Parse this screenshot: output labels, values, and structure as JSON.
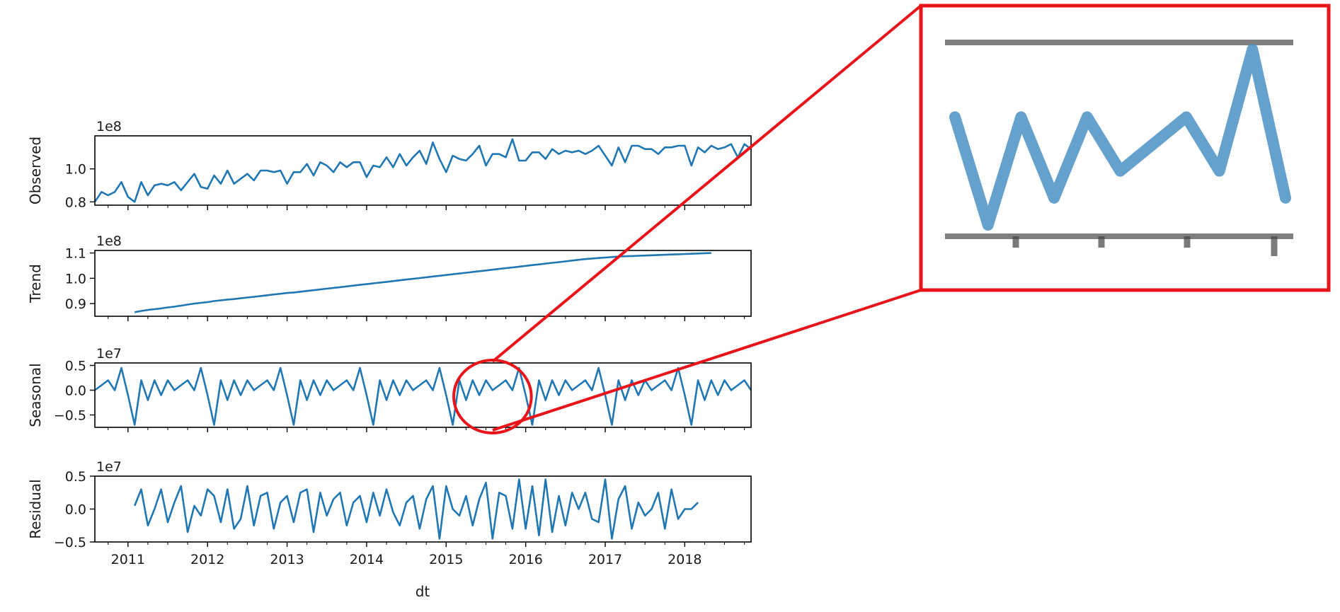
{
  "chart_data": {
    "type": "line",
    "title": "",
    "xlabel": "dt",
    "x_start": "2010-08",
    "x_end": "2018-11",
    "x_ticks": [
      "2011",
      "2012",
      "2013",
      "2014",
      "2015",
      "2016",
      "2017",
      "2018"
    ],
    "panels": [
      {
        "name": "Observed",
        "ylabel": "Observed",
        "offset_label": "1e8",
        "ylim": [
          0.78,
          1.2
        ],
        "y_ticks": [
          0.8,
          1.0
        ],
        "y_tick_labels": [
          "0.8",
          "1.0"
        ],
        "start": "2010-08",
        "values": [
          0.8,
          0.86,
          0.84,
          0.86,
          0.92,
          0.83,
          0.8,
          0.92,
          0.84,
          0.9,
          0.91,
          0.9,
          0.92,
          0.87,
          0.92,
          0.97,
          0.89,
          0.88,
          0.96,
          0.91,
          0.99,
          0.91,
          0.94,
          0.97,
          0.93,
          0.99,
          0.99,
          0.98,
          0.99,
          0.91,
          0.98,
          0.98,
          1.03,
          0.96,
          1.04,
          1.02,
          0.98,
          1.04,
          1.01,
          1.04,
          1.04,
          0.95,
          1.02,
          1.01,
          1.07,
          1.01,
          1.09,
          1.02,
          1.07,
          1.11,
          1.03,
          1.16,
          1.06,
          0.98,
          1.08,
          1.06,
          1.05,
          1.09,
          1.14,
          1.02,
          1.09,
          1.09,
          1.07,
          1.18,
          1.05,
          1.05,
          1.1,
          1.1,
          1.06,
          1.12,
          1.09,
          1.11,
          1.1,
          1.11,
          1.09,
          1.11,
          1.14,
          1.08,
          1.02,
          1.13,
          1.04,
          1.14,
          1.14,
          1.12,
          1.12,
          1.09,
          1.13,
          1.13,
          1.14,
          1.14,
          1.02,
          1.13,
          1.1,
          1.14,
          1.12,
          1.13,
          1.15,
          1.07,
          1.15,
          1.12
        ]
      },
      {
        "name": "Trend",
        "ylabel": "Trend",
        "offset_label": "1e8",
        "ylim": [
          0.85,
          1.11
        ],
        "y_ticks": [
          0.9,
          1.0,
          1.1
        ],
        "y_tick_labels": [
          "0.9",
          "1.0",
          "1.1"
        ],
        "start": "2011-02",
        "values": [
          0.866,
          0.871,
          0.875,
          0.878,
          0.881,
          0.885,
          0.888,
          0.892,
          0.896,
          0.9,
          0.903,
          0.906,
          0.91,
          0.913,
          0.916,
          0.918,
          0.921,
          0.924,
          0.927,
          0.93,
          0.933,
          0.936,
          0.939,
          0.942,
          0.944,
          0.947,
          0.95,
          0.953,
          0.956,
          0.959,
          0.962,
          0.965,
          0.968,
          0.971,
          0.974,
          0.977,
          0.98,
          0.983,
          0.986,
          0.989,
          0.992,
          0.995,
          0.998,
          1.001,
          1.004,
          1.007,
          1.01,
          1.013,
          1.016,
          1.019,
          1.022,
          1.025,
          1.028,
          1.031,
          1.034,
          1.037,
          1.04,
          1.043,
          1.046,
          1.049,
          1.052,
          1.055,
          1.058,
          1.061,
          1.064,
          1.067,
          1.07,
          1.073,
          1.076,
          1.078,
          1.08,
          1.082,
          1.084,
          1.086,
          1.087,
          1.088,
          1.089,
          1.09,
          1.091,
          1.092,
          1.093,
          1.094,
          1.095,
          1.096,
          1.097,
          1.098,
          1.099,
          1.1
        ]
      },
      {
        "name": "Seasonal",
        "ylabel": "Seasonal",
        "offset_label": "1e7",
        "ylim": [
          -0.75,
          0.55
        ],
        "y_ticks": [
          -0.5,
          0.0,
          0.5
        ],
        "y_tick_labels": [
          "−0.5",
          "0.0",
          "0.5"
        ],
        "start": "2010-08",
        "pattern_start_month": 8,
        "pattern": [
          0.0,
          0.1,
          0.2,
          0.0,
          0.45,
          -0.1,
          -0.7,
          0.2,
          -0.2,
          0.2,
          -0.1,
          0.2
        ],
        "n_points": 100
      },
      {
        "name": "Residual",
        "ylabel": "Residual",
        "offset_label": "1e7",
        "ylim": [
          -0.5,
          0.5
        ],
        "y_ticks": [
          -0.5,
          0.0,
          0.5
        ],
        "y_tick_labels": [
          "−0.5",
          "0.0",
          "0.5"
        ],
        "start": "2011-02",
        "values": [
          0.05,
          0.3,
          -0.25,
          0.0,
          0.3,
          -0.2,
          0.1,
          0.35,
          -0.35,
          0.05,
          -0.1,
          0.3,
          0.2,
          -0.2,
          0.3,
          -0.3,
          -0.15,
          0.35,
          -0.25,
          0.2,
          0.25,
          -0.3,
          0.1,
          0.2,
          -0.2,
          0.25,
          0.3,
          -0.35,
          0.25,
          -0.1,
          0.15,
          0.25,
          -0.25,
          0.1,
          0.2,
          -0.2,
          0.25,
          -0.1,
          0.3,
          -0.05,
          -0.25,
          0.1,
          0.2,
          -0.3,
          0.15,
          0.35,
          -0.45,
          0.35,
          0.0,
          -0.1,
          0.2,
          -0.25,
          0.15,
          0.4,
          -0.45,
          0.25,
          0.2,
          -0.3,
          0.45,
          -0.3,
          0.35,
          -0.4,
          0.45,
          -0.35,
          0.2,
          -0.25,
          0.25,
          0.0,
          0.25,
          -0.15,
          -0.2,
          0.45,
          -0.45,
          0.15,
          0.35,
          -0.3,
          0.1,
          -0.1,
          0.0,
          0.25,
          -0.3,
          0.3,
          -0.15,
          0.0,
          0.0,
          0.1
        ]
      }
    ],
    "highlight": {
      "panel": "Seasonal",
      "from": "2015-03",
      "to": "2016-01",
      "color": "#e8141a"
    },
    "line_color": "#1f77b4",
    "zoom_line_color": "#4a90c4"
  }
}
